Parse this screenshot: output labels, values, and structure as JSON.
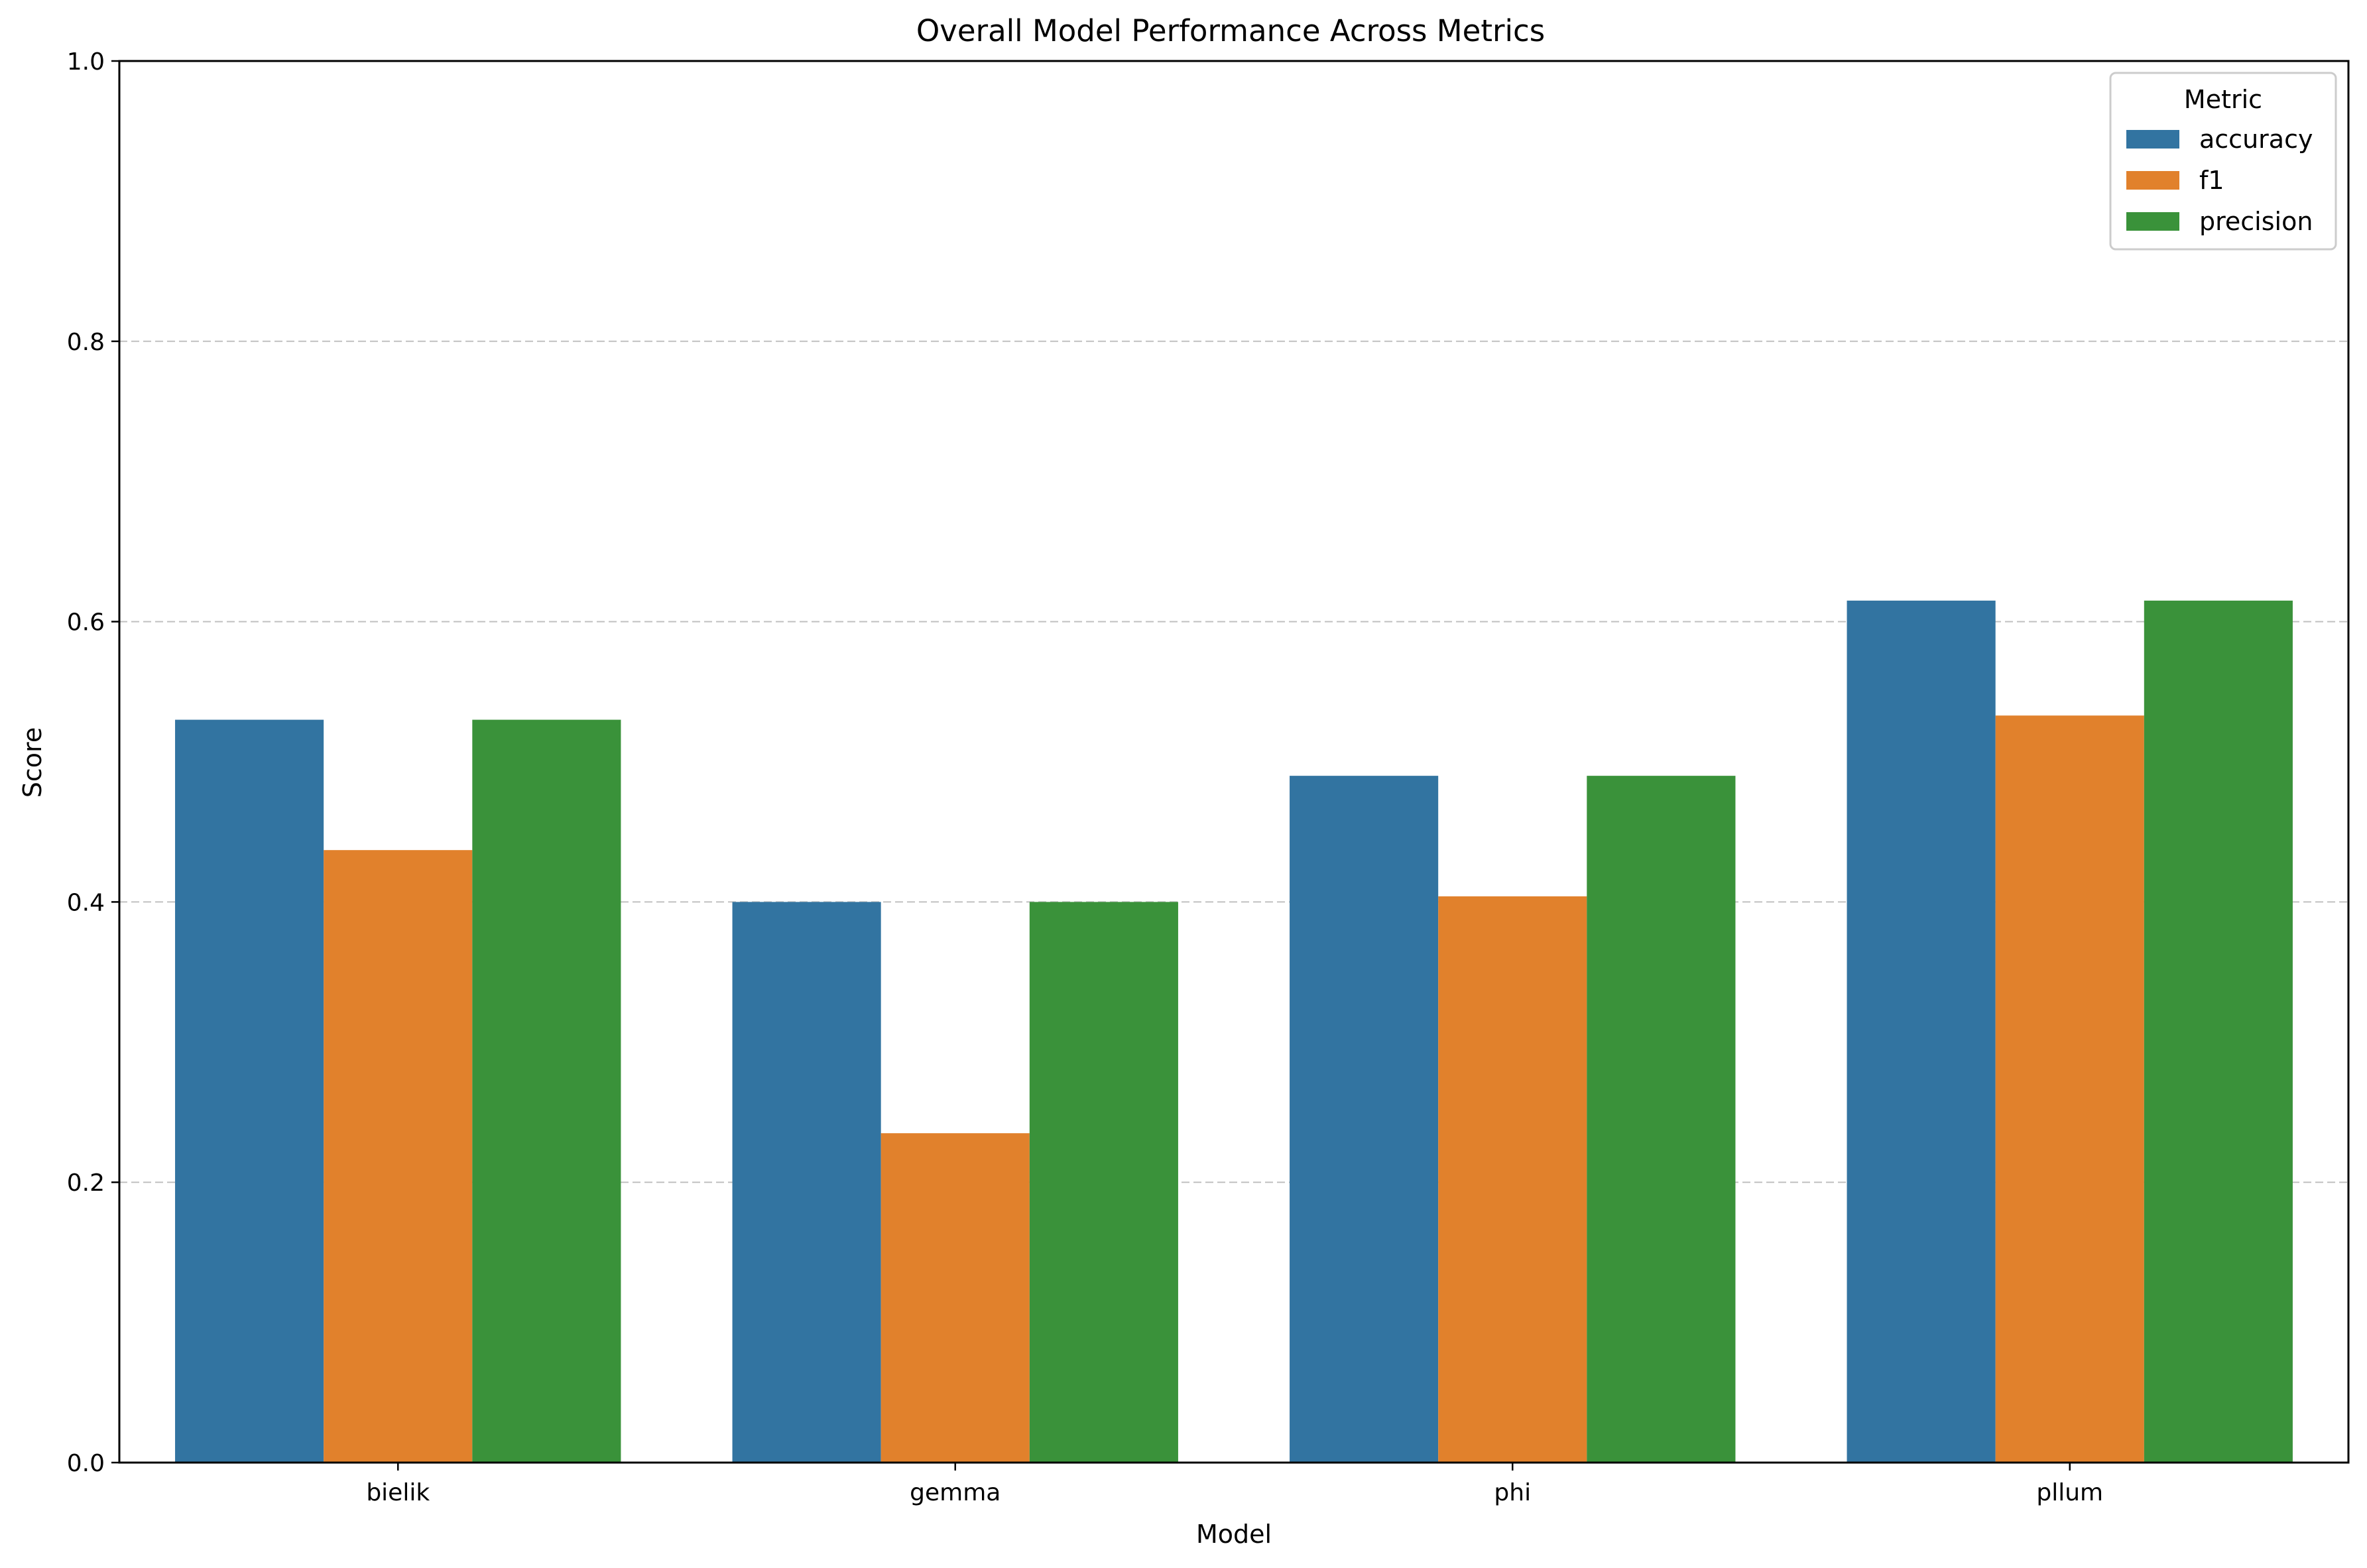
{
  "chart_data": {
    "type": "bar",
    "title": "Overall Model Performance Across Metrics",
    "xlabel": "Model",
    "ylabel": "Score",
    "categories": [
      "bielik",
      "gemma",
      "phi",
      "pllum"
    ],
    "series": [
      {
        "name": "accuracy",
        "color": "#3274a1",
        "values": [
          0.53,
          0.4,
          0.49,
          0.615
        ]
      },
      {
        "name": "f1",
        "color": "#e1812c",
        "values": [
          0.437,
          0.235,
          0.404,
          0.533
        ]
      },
      {
        "name": "precision",
        "color": "#3a923a",
        "values": [
          0.53,
          0.4,
          0.49,
          0.615
        ]
      }
    ],
    "ylim": [
      0,
      1.0
    ],
    "yticks": [
      "0.0",
      "0.2",
      "0.4",
      "0.6",
      "0.8",
      "1.0"
    ],
    "grid": "y-dashed",
    "legend": {
      "title": "Metric",
      "placement": "top-right"
    }
  }
}
